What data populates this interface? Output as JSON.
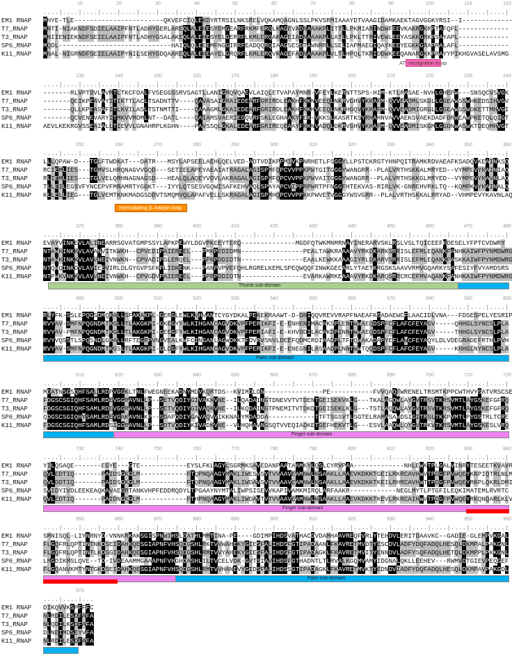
{
  "figure": {
    "type": "multiple_sequence_alignment",
    "sequence_names": [
      "EM1 RNAP",
      "T7_RNAP",
      "T3_RNAP",
      "SP6_RNAP",
      "K11_RNAP"
    ],
    "residues_per_block": 120,
    "colors": {
      "identical": "#000000",
      "similar": "#bdbdbd",
      "thumb": "#a9d18e",
      "palm": "#00b0f0",
      "finger": "#ee82ee",
      "red_region": "#ff0000",
      "at_recognition": "#ff69b4",
      "beta_hairpin": "#ff8c00"
    }
  },
  "blocks": [
    {
      "ticks": [
        "10",
        "20",
        "30",
        "40",
        "50",
        "60",
        "70",
        "80",
        "90",
        "100",
        "110",
        "120"
      ],
      "rows": [
        {
          "name": "EM1 RNAP",
          "seq": "MHYE-TLE-----------------------QKVEFCIQLEKDYRTRSILNKSRELVQKAMQAGNLSSLPKVSRMIAAAYDTVAAGIDAMKAEKTAGVGGKYRSI--I-------------"
        },
        {
          "name": "T7_RNAP",
          "seq": "MNTI-NIAKNDFSDIELAAIPFNTLADHYGERLAREQLALEHESYEMGEARFRKMFERQLKAGEVADNAAAKPLITTLLPKMIARINDWFEEVKAKRGKRPTAFQFL-------------"
        },
        {
          "name": "T3_RNAP",
          "seq": "MNIIENIEKNDFSEIELAAIPFNTLADHYGSALAKEQLALEHESYELGERRFLKMLERQAKAGEIADNAAAKPLLATLLPKLTTRIVEWLEEYASKKGRKPSAYAPL-------------"
        },
        {
          "name": "SP6_RNAP",
          "seq": "MQDL-----------------------------HAIQLQLEEEMFNGGIRRFEADQQRQIAAGSESDTAWNRRLLSELIAPMAEGIQAYKEEYEGKKGRAPRALAFL-------------"
        },
        {
          "name": "K11_RNAP",
          "seq": "MNAL-NIGRNDFSEIELAAIPYNILSEHYGDQAAREQLALEHEAYELGRQRFLKMLERQVKAGEFADNAAAKPLVLTLHPQLTKRIDDWKEEQANARGKKPRAYYPIKHGVASELAVSMG"
        }
      ],
      "callouts": [
        {
          "label": "AT-recognition loop",
          "color": "#ff69b4"
        }
      ]
    },
    {
      "ticks": [
        "130",
        "140",
        "150",
        "160",
        "170",
        "180",
        "190",
        "200",
        "210",
        "220",
        "230",
        "240"
      ],
      "rows": [
        {
          "name": "EM1 RNAP",
          "seq": "-------RLVPTDVLAVMTLTKCFDALFVSEGGSSRVSAGTLLANIGRQVQAEVLAIQLETVAPAYMNR-VFEYLKERNTTSPS-HIM-KTLRASAE-NVHLGHEPW---SNSQCVSVGK"
        },
        {
          "name": "T7_RNAP",
          "seq": "-------QEIKPEAVAYITIKTTLACLTSADNTTV----QAVASAIGRAIEDEARFGRIRDLEAKHFKKNVEEQLNKRVGHVYKKAFM-QVVEADMLSKGLLGGEAWSSWHKEDSIHVGV"
        },
        {
          "name": "T3_RNAP",
          "seq": "-------QLLKPEASAFITLKVILASLTSTNMTTI----QAAAGMLGKAIEDEARFGRIRDLEAKHFKKHVEEQLNKRHGQVYKKAFM-QVVEADMIGRGLLGGEAWSSWDKETTMHVGI"
        },
        {
          "name": "SP6_RNAP",
          "seq": "-------QCVENEVARYITMKVVMDMLNT--DATL----QAIAMSVAERIEDQVRFSKLEGHAAKYFEK-VKKSLKASRTKSYRHAHNVAVVAEKSVAEKDADFDRWEAWPKETQLQIGT"
        },
        {
          "name": "K11_RNAP",
          "seq": "AEVLKEKRGVSSEAIALLTIEVVLGNAHRPLKGHN----PAVSSQLGKALEDEARFGRIREQEAAYFKKNVADQLDKRVGHVYKKAFM-QVVEADMISKGMLGGDNWASWKTDEQMHVGT"
        }
      ]
    },
    {
      "ticks": [
        "250",
        "260",
        "270",
        "280",
        "290",
        "300",
        "310",
        "320",
        "330",
        "340",
        "350",
        "360"
      ],
      "rows": [
        {
          "name": "EM1 RNAP",
          "seq": "LLLQPAW-D---TGLFTWDKAT---DATR---MSYLAPSEELAEHLQELVED-ADTVDIKPPMIVKPNRHETLFSGGYLLPSTCKRGTYHNPQITRAMKRDVAEAFKSADQVKEAINKSQ"
        },
        {
          "name": "T7_RNAP",
          "seq": "RCIEMLIES---TGMVSLHRQNAGVVGQD---SETIELAPEYAEAIATRAGALAGISPMFQPCVVPPKPWTGITGGGYWANGRR--PLALVRTHSKKALMRYED--VYMPEVYKAINIAQ"
        },
        {
          "name": "T3_RNAP",
          "seq": "RLIEMLIES---TGLVELQRHNAGNAGSD---HEALQLAQEYVDVLAKRAGALAGISPMFQPCVVPPKPWVAITGGGYWANGRR--PLALVRTHSKKGLMRYED--VYMPEVYKAVNLAQ"
        },
        {
          "name": "SP6_RNAP",
          "seq": "TLLEILEGSVFYNCEPVFMRAMRTYGGKT---IYYLQTSESVGQWISAFKEHVAQLSPAYAPCVIPPRPWRTPFNGGFHTEKVAS-RIRLVK-GNREHVRKLTQ--KQMPKVYKAINALQ"
        },
        {
          "name": "K11_RNAP",
          "seq": "KLLELLIEG---TGLVEMTKNKMADGSDDVTSMQMVQLAPAFVELLSKRAGALAGISPMHQPCVVPPKKPWVETVGGGYWSVGRR--PLALVRTHSKKALRRYAD--VHMPEVYKAVNLAQ"
        }
      ],
      "callouts": [
        {
          "label": "Intercalating β–hairpin loop",
          "color": "#ff8c00"
        }
      ]
    },
    {
      "ticks": [
        "370",
        "380",
        "390",
        "400",
        "410",
        "420",
        "430",
        "440",
        "450",
        "460",
        "470",
        "480"
      ],
      "rows": [
        {
          "name": "EM1 RNAP",
          "seq": "EVAYVINKEVLALINEARRSGVATGMPSSYLAPKPEWYLDGVPKEEYTERQ--------------MGDFQTWKMNMRNAYINERARVSKLRSLVSLTQICEEFKDESELYFPTCVDWRY"
        },
        {
          "name": "T7_RNAP",
          "seq": "NTAWKINKKVLAVANVITKWKH--CPVEDIPAIEREEL---PMKPEDIDMN----------------PEALTAWKRAAAAVYRKDKARKSRRISLEFMLEQANKFANHKAIWFPYNMDWRG"
        },
        {
          "name": "T3_RNAP",
          "seq": "NTAWKINKKVLAVVNEIVNWKN--CPVADIPSLERQEL---PPKPDDIDTN----------------EAALKEWKKAAAGIYRLDKARVSRRISLEFMLEQANKFASKKAIWFPYNMDWRG"
        },
        {
          "name": "SP6_RNAP",
          "seq": "NTQWQINKDVLAVIEEVIRLDLGYGVPSFKPLIDKENK---PANPVPVEFQHLRGRELKEMLSPEQWQQFINWKGECARLYTAETKRGSKSAAVVRMVGQARKYSAFESIYFVYAMDSRS"
        },
        {
          "name": "K11_RNAP",
          "seq": "NTPWKVNKKVLAVVNEIVNWKH--CPVGDVPAIEREEL---PPRPDDIDTN----------------EVARKAWRKEAAAVYRKDKARQSRRCRCEFMVAQANKFANHKAIWFPYNMDWRG"
        }
      ],
      "domains": [
        {
          "label": "Thumb sub-domain",
          "color": "#a9d18e"
        },
        {
          "label": "",
          "color": "#00b0f0"
        }
      ]
    },
    {
      "ticks": [
        "490",
        "500",
        "510",
        "520",
        "530",
        "540",
        "550",
        "560",
        "570",
        "580",
        "590",
        "600"
      ],
      "rows": [
        {
          "name": "EM1 RNAP",
          "seq": "RLYFK-SSLEPQGSDMQKALLSFAKAKPL-GERGLEWLKVHVANTCYGYDKALPEKEKRAAWT-D-DNIQQVREVVRAPFNAEAFKSADAEWCFLAACIDLVNA---FDSESPELYESRIPVA"
        },
        {
          "name": "T7_RNAP",
          "seq": "RVYAV-SMFNPQGNDMTKGLLTLAKGKPI-GKEGYYWLKIHGANCAGVDKVPFPERIKFI-E-ENHENIMACAKSPLENTWWAEQDSPFCFLAFCFEYAGV-----QHHGLSYNCSLPLA"
        },
        {
          "name": "T3_RNAP",
          "seq": "RVYAV-PMFNPQGNDMTKGLLTLAKGKPI-GEEGFYWLKIHGANCAGVDKVPFPERIAFI-E-KHVDDILACAKDPINNTWWAEQDSPFCFLAFCFEYAGV-----THHGLSYNCSLPLA"
        },
        {
          "name": "SP6_RNAP",
          "seq": "RVYVQSSTLSPQSNDLGKALLRFTEGRPVNGVEALKWFCINGANLAGWDKKTFDVRVSNVLDEEFQDMCRDIAADPLTFTQWAKADAPYEFLAWCFEYAQYLDLVDEGRADEFRTHLPVH"
        },
        {
          "name": "K11_RNAP",
          "seq": "RVYAV-SMFNPQGNDMTKGSLTLAKGKPI-GLDGFYWLKIHGANCAGVDKVPFPERIKFI-E-ENEGNILASAADPLNNTWWTQQDSPFCFLAFCFEYAGV-----KHHGLNYNCSLPLA"
        }
      ],
      "domains": [
        {
          "label": "Palm sub-domain",
          "color": "#00b0f0"
        }
      ]
    },
    {
      "ticks": [
        "610",
        "620",
        "630",
        "640",
        "650",
        "660",
        "670",
        "680",
        "690",
        "700",
        "710",
        "720"
      ],
      "rows": [
        {
          "name": "EM1 RNAP",
          "seq": "MDATNSGSQHFSALLRDPVGGKLTNLFWEGNEEKADNYMDVKQRTDS--KVIMDLDN---------------PE-----------FVVQAQFWRENELTRSMTKPPCWTHVYSATVRSCSE"
        },
        {
          "name": "T7_RNAP",
          "seq": "FDGSCSGIQHFSAMLRDEVGGRAVNLLP--SETVQDIYGIVAKKVNE--ILQADAINGTDNEVVTVTDENTGEISEKVKLG---TKALAGQWLAYGVTRSVTKRSVMTLAYGSKEFGFRQ"
        },
        {
          "name": "T3_RNAP",
          "seq": "FDGSCSGIQHFSAMLRDEVGGRAVNLLP--SETVQDIYGIVAQKVNE--ILKQDAINGTPNEMITVTDKDTGEISEKLKLG---TSTLAQQWLAYGVTRSVTKRSVMTLAYGSKEFGFRQ"
        },
        {
          "name": "SP6_RNAP",
          "seq": "QDGSCSGIQHYSAMLRDEVGAKAVNLKP--SDAPQDIYGAVAQVVIKKNALYMDADDA------------TTFTSGSVTLSGTELRAMASAWDSIGITRSLTKKPVMTLPYGSTRLTCRE"
        },
        {
          "name": "K11_RNAP",
          "seq": "FDGSCSGIQHFSAMLRDSIGGRAVNLLP--SDTVQDIYKIVADKVNE--VLHQHAVNGSQTVVEQIADKETGEFHEKVTLG---ESVLAAQWLQYGVTRKVTKRSVMTLAYGSKESLVRQ"
        }
      ],
      "domains": [
        {
          "label": "",
          "color": "#00b0f0"
        },
        {
          "label": "Finger sub-domain",
          "color": "#ee82ee"
        }
      ]
    },
    {
      "ticks": [
        "730",
        "740",
        "750",
        "760",
        "770",
        "780",
        "790",
        "800",
        "810",
        "820",
        "830",
        "840"
      ],
      "rows": [
        {
          "name": "EM1 RNAP",
          "seq": "YILQSAQE-------EGYE---GTE------------EYSLFKLAGYLSGRMKSAVEDANPAATAAMKYLQSLCYRVPAA-------------NHLEWKTPLGALVINRYTESEETKVAVR"
        },
        {
          "name": "T7_RNAP",
          "seq": "QVLEDTIQ-------PAIDSGKGLM------------FTQPNQAAGYMAKLIWESVSVTVVAAVEAMNWLKSAAKLLAAEVKDKKTGEILRKRCAVHWVTPDGFPVWQEYKKPIQTRLNLM"
        },
        {
          "name": "T3_RNAP",
          "seq": "QVLDDTIQ-------PAIDSGKGLM------------FTQPNQAAGYMAKLIWDAVSVTVVAAVEAMNWLKSAAKLLAAEVKDKKTKEILRHRCAVHWTTPDGFPVWQEYRKPLQKRLDMI"
        },
        {
          "name": "SP6_RNAP",
          "seq": "SVIDYIVDLEEKEAQKAVAEGRTANKVHPFEDDRQDYLTPGAAYNYMTALIWPSISEVVKAPIVAMKMIRQLARFAAKR------------NEGLMYTLPTGFILEQKIMATEMLRVRTC"
        },
        {
          "name": "K11_RNAP",
          "seq": "QVLEDTIQ-------PAIDNGKGLM------------FTHPNQAAGYMAKLIWDAVTVTVVAAVEAMNWLKSAAKLLAAEVKDKKTKEVLRKRCAIHWVTPDGFPVWQEYRKQNQARLKLV"
        }
      ],
      "domains": [
        {
          "label": "Finger sub-domain",
          "color": "#ee82ee"
        },
        {
          "label": "",
          "color": "#ff0000"
        }
      ]
    },
    {
      "ticks": [
        "850",
        "860",
        "870",
        "880",
        "890",
        "900",
        "910",
        "920",
        "930",
        "940",
        "950",
        "960"
      ],
      "rows": [
        {
          "name": "EM1 RNAP",
          "seq": "SMNISQL-LIYNRNYD-VNNKRKAKSGISPNWIHSLDATHLMMTINA-PE----GDIMPIHDSVATHACDVDAMHAAVREQFVRLYTEHDVLERITDAAVKC--GADIE-GLEMPVKGAL"
        },
        {
          "name": "T7_RNAP",
          "seq": "FLGQFRLQPTINTNKDSEIDAHKQESGIAPNFVHSQDGSHLRKTVVWAHEKYGIESFALIHDSFGTIPADAANLFKAVRETMVDTYESCDVLADFYDQFADQLHESQLDKMPALPAKGNL"
        },
        {
          "name": "T3_RNAP",
          "seq": "FLGQFRLQPTINTLKDSGIDAHKQESGIAPNFVHSQDGSHLRMTVVYAHEKYGIESFALIHDSFGTIPADAGKLFKAVRETMVITYENNDVLADFYSQFADQLHETQLDKMPPLPKKGNL"
        },
        {
          "name": "SP6_RNAP",
          "seq": "LMGDIKMSLQVE--TD-IVDEAAMMGAAAPNFVHGHDASHLILTVCELVDK-GVTSIAVIHDSFGTHADNTLTLRVALKGQMVAMYIDGNALQKLLEEHEV---RWMVDTGIEVPEQGEF"
        },
        {
          "name": "K11_RNAP",
          "seq": "FLGQANVKMTYNTGKDSEIDAHKQESGIAPNFVHSQDGSHLRMTVVHANEVYGIDSFALIHDSSGTIPADAGKLFKAVRETMVKTYEDNDVIADFYDQFADQLHESQLDKMPAVPAKGDL"
        }
      ],
      "domains": [
        {
          "label": "",
          "color": "#ff0000"
        },
        {
          "label": "",
          "color": "#ee82ee"
        },
        {
          "label": "Palm sub-domain",
          "color": "#00b0f0"
        }
      ]
    },
    {
      "ticks": [
        "970"
      ],
      "rows": [
        {
          "name": "EM1 RNAP",
          "seq": "DIKQVVKSPFFFC"
        },
        {
          "name": "T7_RNAP",
          "seq": "NLRDILESDFAFA"
        },
        {
          "name": "T3_RNAP",
          "seq": "NLQDILKSDFAFA"
        },
        {
          "name": "SP6_RNAP",
          "seq": "DLNEIMDSEYVFA"
        },
        {
          "name": "K11_RNAP",
          "seq": "NLRDILESDFAFA"
        }
      ],
      "domains": [
        {
          "label": "",
          "color": "#00b0f0"
        }
      ]
    }
  ]
}
